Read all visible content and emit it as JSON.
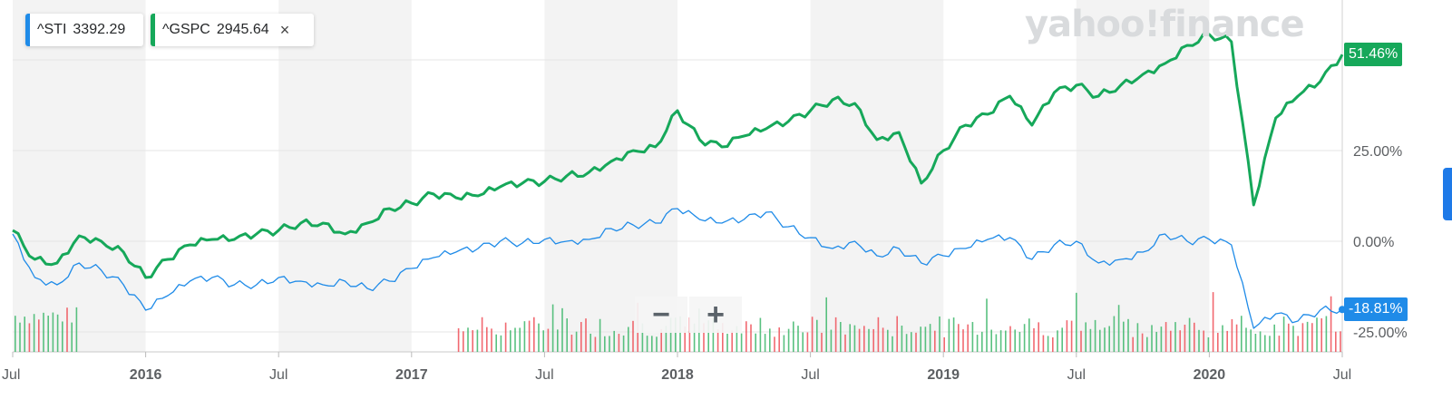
{
  "watermark": "yahoo!finance",
  "legend": [
    {
      "symbol": "^STI",
      "value": "3392.29",
      "color": "#1f8be8",
      "removable": false
    },
    {
      "symbol": "^GSPC",
      "value": "2945.64",
      "color": "#16a85a",
      "removable": true
    }
  ],
  "legend_close_icon": "×",
  "zoom": {
    "out_label": "−",
    "in_label": "+"
  },
  "colors": {
    "gspc": "#16a85a",
    "sti": "#1f8be8",
    "vol_up": "#3cb66a",
    "vol_down": "#ee4f57",
    "band": "#f3f3f3",
    "grid": "#e6e6e6",
    "axis_text": "#5c5f62"
  },
  "chart_data": {
    "type": "line",
    "x_ticks": [
      "Jul",
      "2016",
      "Jul",
      "2017",
      "Jul",
      "2018",
      "Jul",
      "2019",
      "Jul",
      "2020",
      "Jul"
    ],
    "y_ticks": [
      "25.00%",
      "0.00%",
      "-25.00%"
    ],
    "ylim": [
      -30,
      75
    ],
    "xlim": [
      "2015-07",
      "2020-07"
    ],
    "grid": true,
    "legend_position": "top-left",
    "series": [
      {
        "name": "^GSPC",
        "last_label": "51.46%",
        "x": [
          "2015-07",
          "2015-08",
          "2015-09",
          "2015-10",
          "2015-11",
          "2015-12",
          "2016-01",
          "2016-02",
          "2016-03",
          "2016-04",
          "2016-05",
          "2016-06",
          "2016-07",
          "2016-08",
          "2016-09",
          "2016-10",
          "2016-11",
          "2016-12",
          "2017-01",
          "2017-02",
          "2017-03",
          "2017-04",
          "2017-05",
          "2017-06",
          "2017-07",
          "2017-08",
          "2017-09",
          "2017-10",
          "2017-11",
          "2017-12",
          "2018-01",
          "2018-02",
          "2018-03",
          "2018-04",
          "2018-05",
          "2018-06",
          "2018-07",
          "2018-08",
          "2018-09",
          "2018-10",
          "2018-11",
          "2018-12",
          "2019-01",
          "2019-02",
          "2019-03",
          "2019-04",
          "2019-05",
          "2019-06",
          "2019-07",
          "2019-08",
          "2019-09",
          "2019-10",
          "2019-11",
          "2019-12",
          "2020-01",
          "2020-02",
          "2020-03",
          "2020-04",
          "2020-05",
          "2020-06",
          "2020-07"
        ],
        "values": [
          3.0,
          -5.0,
          -6.0,
          1.5,
          0.0,
          -3.0,
          -10.0,
          -5.0,
          -1.0,
          0.5,
          0.5,
          2.0,
          3.0,
          5.0,
          5.0,
          2.0,
          5.0,
          9.0,
          10.5,
          13.0,
          12.0,
          12.5,
          15.0,
          16.0,
          16.5,
          18.0,
          19.0,
          22.0,
          25.0,
          26.0,
          36.0,
          28.0,
          26.0,
          29.0,
          31.0,
          33.0,
          36.0,
          39.0,
          38.0,
          28.0,
          30.0,
          16.0,
          25.0,
          32.0,
          35.0,
          40.0,
          32.0,
          41.0,
          43.0,
          40.0,
          43.0,
          46.0,
          49.0,
          54.0,
          57.0,
          55.0,
          10.0,
          34.0,
          40.0,
          44.0,
          51.46
        ]
      },
      {
        "name": "^STI",
        "last_label": "-18.81%",
        "x": [
          "2015-07",
          "2015-08",
          "2015-09",
          "2015-10",
          "2015-11",
          "2015-12",
          "2016-01",
          "2016-02",
          "2016-03",
          "2016-04",
          "2016-05",
          "2016-06",
          "2016-07",
          "2016-08",
          "2016-09",
          "2016-10",
          "2016-11",
          "2016-12",
          "2017-01",
          "2017-02",
          "2017-03",
          "2017-04",
          "2017-05",
          "2017-06",
          "2017-07",
          "2017-08",
          "2017-09",
          "2017-10",
          "2017-11",
          "2017-12",
          "2018-01",
          "2018-02",
          "2018-03",
          "2018-04",
          "2018-05",
          "2018-06",
          "2018-07",
          "2018-08",
          "2018-09",
          "2018-10",
          "2018-11",
          "2018-12",
          "2019-01",
          "2019-02",
          "2019-03",
          "2019-04",
          "2019-05",
          "2019-06",
          "2019-07",
          "2019-08",
          "2019-09",
          "2019-10",
          "2019-11",
          "2019-12",
          "2020-01",
          "2020-02",
          "2020-03",
          "2020-04",
          "2020-05",
          "2020-06",
          "2020-07"
        ],
        "values": [
          2.0,
          -10.0,
          -12.0,
          -6.0,
          -8.0,
          -12.0,
          -19.0,
          -15.0,
          -11.0,
          -10.0,
          -12.0,
          -12.0,
          -10.0,
          -11.0,
          -12.0,
          -11.0,
          -13.0,
          -11.0,
          -7.5,
          -4.5,
          -3.0,
          -2.0,
          0.0,
          -0.5,
          0.5,
          0.0,
          0.5,
          3.5,
          4.5,
          5.0,
          9.0,
          6.0,
          5.0,
          6.0,
          8.0,
          4.0,
          1.0,
          -2.0,
          0.0,
          -4.0,
          -2.0,
          -6.0,
          -4.0,
          -2.0,
          0.5,
          1.0,
          -5.0,
          -1.0,
          0.0,
          -6.0,
          -5.0,
          -3.0,
          2.0,
          0.0,
          0.5,
          -1.0,
          -24.0,
          -20.0,
          -22.0,
          -19.0,
          -18.81
        ]
      }
    ],
    "volume": {
      "up_ratio": 0.6,
      "start_gap": [
        "2015-10",
        "2017-03"
      ]
    }
  }
}
